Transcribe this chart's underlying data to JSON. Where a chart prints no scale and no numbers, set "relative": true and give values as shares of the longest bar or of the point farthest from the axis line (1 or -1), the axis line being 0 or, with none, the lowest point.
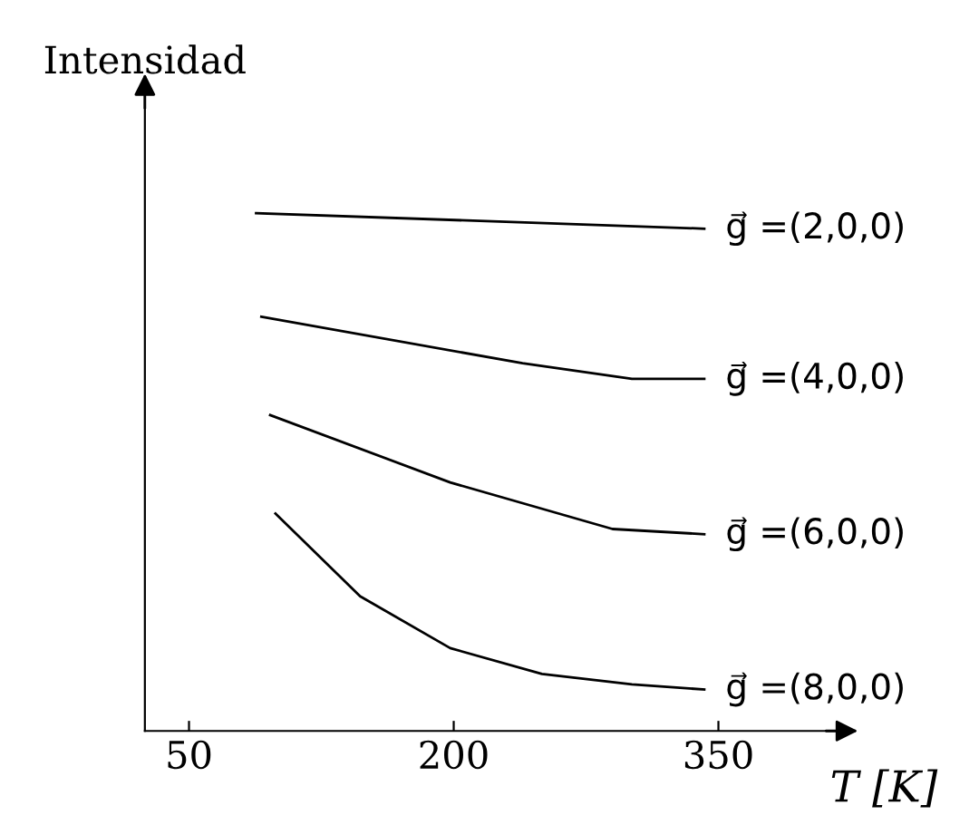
{
  "chart_data": {
    "type": "line",
    "relative": true,
    "xlabel": "T [K]",
    "ylabel": "Intensidad",
    "xlim": [
      25,
      420
    ],
    "xticks": [
      50,
      200,
      350
    ],
    "grid": false,
    "legend": false,
    "marker": "none",
    "line_style": "solid",
    "series": [
      {
        "name": "g⃗ =(2,0,0)",
        "color": "#000000",
        "x": [
          88,
          342
        ],
        "values": [
          1,
          0.97
        ]
      },
      {
        "name": "g⃗ =(4,0,0)",
        "color": "#000000",
        "x": [
          91,
          239,
          301,
          342
        ],
        "values": [
          0.8,
          0.71,
          0.68,
          0.68
        ]
      },
      {
        "name": "g⃗ =(6,0,0)",
        "color": "#000000",
        "x": [
          96,
          198,
          290,
          342
        ],
        "values": [
          0.61,
          0.48,
          0.39,
          0.38
        ]
      },
      {
        "name": "g⃗ =(8,0,0)",
        "color": "#000000",
        "x": [
          99,
          147,
          198,
          250,
          301,
          342
        ],
        "values": [
          0.42,
          0.26,
          0.16,
          0.11,
          0.09,
          0.08
        ]
      }
    ]
  }
}
